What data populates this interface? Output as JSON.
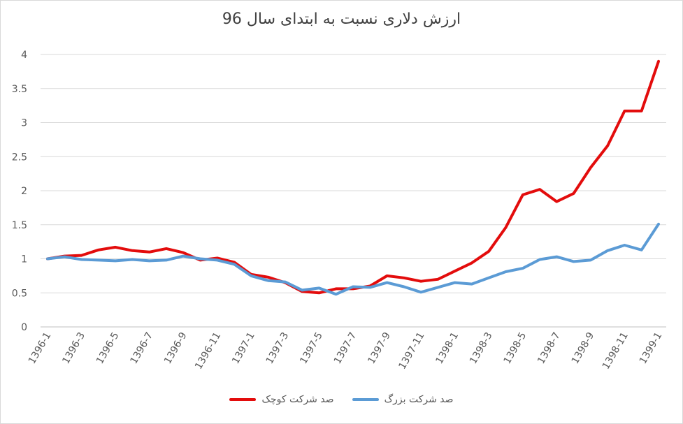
{
  "chart_data": {
    "type": "line",
    "title": "ارزش دلاری نسبت به ابتدای سال 96",
    "xlabel": "",
    "ylabel": "",
    "ylim": [
      0,
      4
    ],
    "yticks": [
      "0",
      "0.5",
      "1",
      "1.5",
      "2",
      "2.5",
      "3",
      "3.5",
      "4"
    ],
    "grid": true,
    "legend_position": "bottom",
    "categories": [
      "1396-1",
      "1396-2",
      "1396-3",
      "1396-4",
      "1396-5",
      "1396-6",
      "1396-7",
      "1396-8",
      "1396-9",
      "1396-10",
      "1396-11",
      "1396-12",
      "1397-1",
      "1397-2",
      "1397-3",
      "1397-4",
      "1397-5",
      "1397-6",
      "1397-7",
      "1397-8",
      "1397-9",
      "1397-10",
      "1397-11",
      "1397-12",
      "1398-1",
      "1398-2",
      "1398-3",
      "1398-4",
      "1398-5",
      "1398-6",
      "1398-7",
      "1398-8",
      "1398-9",
      "1398-10",
      "1398-11",
      "1398-12",
      "1399-1"
    ],
    "tick_labels": [
      "1396-1",
      "1396-3",
      "1396-5",
      "1396-7",
      "1396-9",
      "1396-11",
      "1397-1",
      "1397-3",
      "1397-5",
      "1397-7",
      "1397-9",
      "1397-11",
      "1398-1",
      "1398-3",
      "1398-5",
      "1398-7",
      "1398-9",
      "1398-11",
      "1399-1"
    ],
    "series": [
      {
        "name": "صد شرکت کوچک",
        "color": "#e30c0c",
        "values": [
          1.0,
          1.04,
          1.05,
          1.13,
          1.17,
          1.12,
          1.1,
          1.15,
          1.09,
          0.98,
          1.01,
          0.95,
          0.77,
          0.73,
          0.65,
          0.52,
          0.5,
          0.56,
          0.56,
          0.6,
          0.75,
          0.72,
          0.67,
          0.7,
          0.82,
          0.94,
          1.11,
          1.46,
          1.94,
          2.02,
          1.84,
          1.96,
          2.34,
          2.66,
          3.17,
          3.17,
          3.9
        ]
      },
      {
        "name": "صد شرکت بزرگ",
        "color": "#5b9bd5",
        "values": [
          1.0,
          1.03,
          0.99,
          0.98,
          0.97,
          0.99,
          0.97,
          0.98,
          1.04,
          1.0,
          0.98,
          0.92,
          0.75,
          0.68,
          0.66,
          0.54,
          0.57,
          0.48,
          0.59,
          0.58,
          0.65,
          0.59,
          0.51,
          0.58,
          0.65,
          0.63,
          0.72,
          0.81,
          0.86,
          0.99,
          1.03,
          0.96,
          0.98,
          1.12,
          1.2,
          1.13,
          1.51
        ]
      }
    ]
  }
}
